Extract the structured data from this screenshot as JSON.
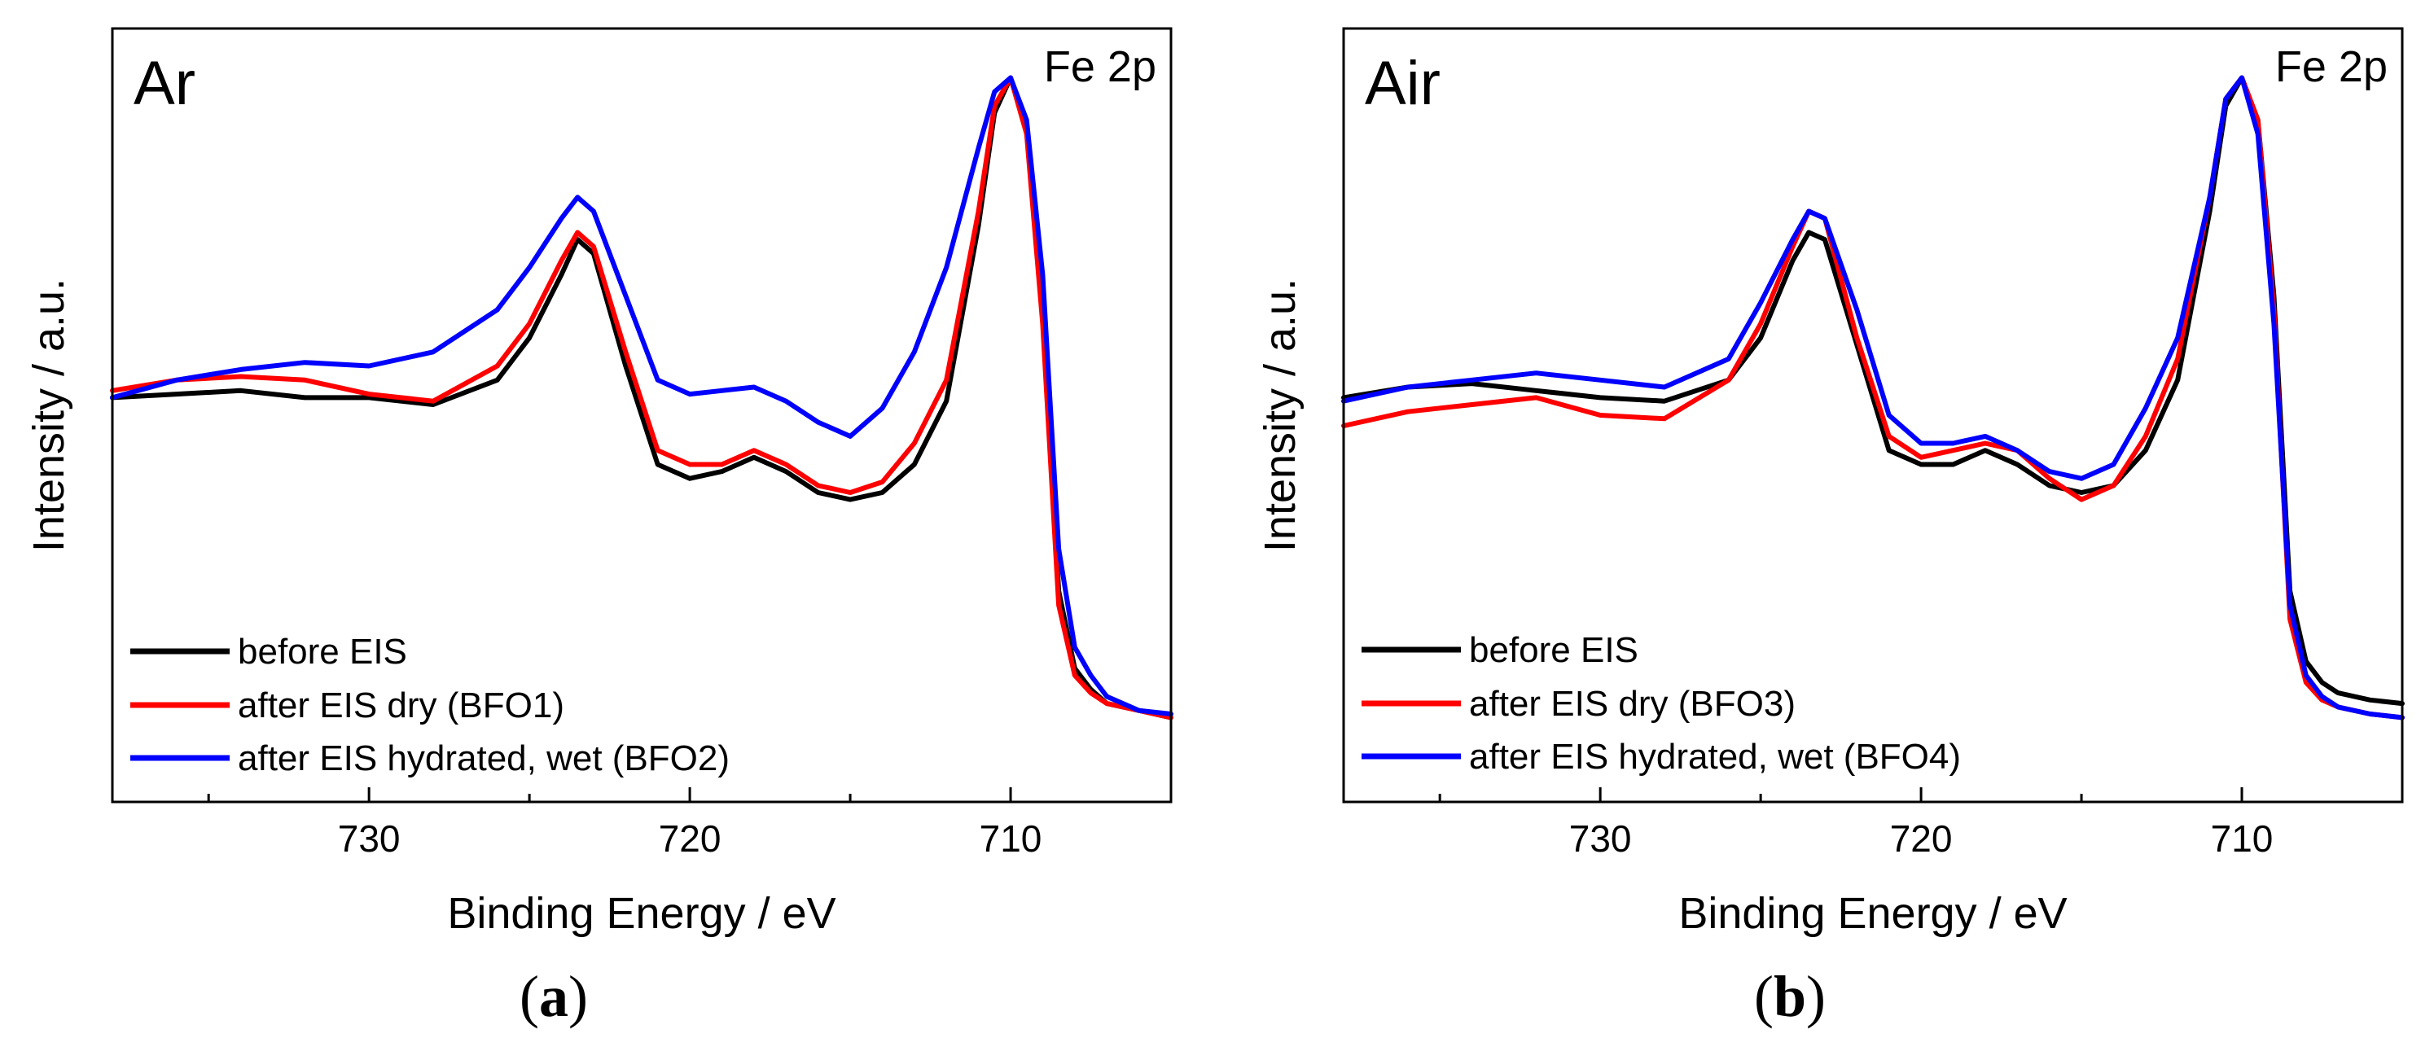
{
  "chart_data": [
    {
      "type": "line",
      "panel_label": "a",
      "atmosphere_label": "Ar",
      "corner_label": "Fe 2p",
      "xlabel": "Binding Energy / eV",
      "ylabel": "Intensity / a.u.",
      "xlim": [
        738,
        705
      ],
      "ylim": [
        0,
        1.1
      ],
      "x_ticks": [
        730,
        720,
        710
      ],
      "x_minor_ticks": [
        735,
        725,
        715,
        705
      ],
      "grid": false,
      "legend_position": "bottom-left",
      "series": [
        {
          "name": "before EIS",
          "color": "#000000",
          "x": [
            738,
            736,
            734,
            732,
            730,
            728,
            726,
            725,
            724,
            723.5,
            723,
            722,
            721,
            720,
            719,
            718,
            717,
            716,
            715,
            714,
            713,
            712,
            711,
            710.5,
            710,
            709.5,
            709,
            708.5,
            708,
            707.5,
            707,
            706,
            705
          ],
          "y": [
            0.575,
            0.58,
            0.585,
            0.575,
            0.575,
            0.565,
            0.6,
            0.66,
            0.75,
            0.8,
            0.78,
            0.62,
            0.48,
            0.46,
            0.47,
            0.49,
            0.47,
            0.44,
            0.43,
            0.44,
            0.48,
            0.57,
            0.82,
            0.98,
            1.03,
            0.96,
            0.7,
            0.3,
            0.19,
            0.16,
            0.14,
            0.13,
            0.12
          ]
        },
        {
          "name": "after EIS dry (BFO1)",
          "color": "#ff0000",
          "x": [
            738,
            736,
            734,
            732,
            730,
            728,
            726,
            725,
            724,
            723.5,
            723,
            722,
            721,
            720,
            719,
            718,
            717,
            716,
            715,
            714,
            713,
            712,
            711,
            710.5,
            710,
            709.5,
            709,
            708.5,
            708,
            707.5,
            707,
            706,
            705
          ],
          "y": [
            0.585,
            0.6,
            0.605,
            0.6,
            0.58,
            0.57,
            0.62,
            0.68,
            0.77,
            0.81,
            0.79,
            0.64,
            0.5,
            0.48,
            0.48,
            0.5,
            0.48,
            0.45,
            0.44,
            0.455,
            0.51,
            0.6,
            0.84,
            0.99,
            1.03,
            0.95,
            0.68,
            0.28,
            0.18,
            0.155,
            0.14,
            0.13,
            0.12
          ]
        },
        {
          "name": "after EIS hydrated, wet (BFO2)",
          "color": "#0000ff",
          "x": [
            738,
            736,
            734,
            732,
            730,
            728,
            726,
            725,
            724,
            723.5,
            723,
            722,
            721,
            720,
            719,
            718,
            717,
            716,
            715,
            714,
            713,
            712,
            711,
            710.5,
            710,
            709.5,
            709,
            708.5,
            708,
            707.5,
            707,
            706,
            705
          ],
          "y": [
            0.575,
            0.6,
            0.615,
            0.625,
            0.62,
            0.64,
            0.7,
            0.76,
            0.83,
            0.86,
            0.84,
            0.72,
            0.6,
            0.58,
            0.585,
            0.59,
            0.57,
            0.54,
            0.52,
            0.56,
            0.64,
            0.76,
            0.93,
            1.01,
            1.03,
            0.97,
            0.75,
            0.36,
            0.22,
            0.18,
            0.15,
            0.13,
            0.125
          ]
        }
      ]
    },
    {
      "type": "line",
      "panel_label": "b",
      "atmosphere_label": "Air",
      "corner_label": "Fe 2p",
      "xlabel": "Binding Energy / eV",
      "ylabel": "Intensity / a.u.",
      "xlim": [
        738,
        705
      ],
      "ylim": [
        0,
        1.1
      ],
      "x_ticks": [
        730,
        720,
        710
      ],
      "x_minor_ticks": [
        735,
        725,
        715,
        705
      ],
      "grid": false,
      "legend_position": "bottom-left",
      "series": [
        {
          "name": "before EIS",
          "color": "#000000",
          "x": [
            738,
            736,
            734,
            732,
            730,
            728,
            726,
            725,
            724,
            723.5,
            723,
            722,
            721,
            720,
            719,
            718,
            717,
            716,
            715,
            714,
            713,
            712,
            711,
            710.5,
            710,
            709.5,
            709,
            708.5,
            708,
            707.5,
            707,
            706,
            705
          ],
          "y": [
            0.575,
            0.59,
            0.595,
            0.585,
            0.575,
            0.57,
            0.6,
            0.66,
            0.77,
            0.81,
            0.8,
            0.65,
            0.5,
            0.48,
            0.48,
            0.5,
            0.48,
            0.45,
            0.44,
            0.45,
            0.5,
            0.6,
            0.84,
            0.99,
            1.03,
            0.97,
            0.72,
            0.3,
            0.2,
            0.17,
            0.155,
            0.145,
            0.14
          ]
        },
        {
          "name": "after EIS dry (BFO3)",
          "color": "#ff0000",
          "x": [
            738,
            736,
            734,
            732,
            730,
            728,
            726,
            725,
            724,
            723.5,
            723,
            722,
            721,
            720,
            719,
            718,
            717,
            716,
            715,
            714,
            713,
            712,
            711,
            710.5,
            710,
            709.5,
            709,
            708.5,
            708,
            707.5,
            707,
            706,
            705
          ],
          "y": [
            0.535,
            0.555,
            0.565,
            0.575,
            0.55,
            0.545,
            0.6,
            0.68,
            0.79,
            0.84,
            0.83,
            0.66,
            0.52,
            0.49,
            0.5,
            0.51,
            0.5,
            0.46,
            0.43,
            0.45,
            0.52,
            0.63,
            0.86,
            1.0,
            1.03,
            0.97,
            0.7,
            0.26,
            0.17,
            0.145,
            0.135,
            0.125,
            0.12
          ]
        },
        {
          "name": "after EIS hydrated, wet (BFO4)",
          "color": "#0000ff",
          "x": [
            738,
            736,
            734,
            732,
            730,
            728,
            726,
            725,
            724,
            723.5,
            723,
            722,
            721,
            720,
            719,
            718,
            717,
            716,
            715,
            714,
            713,
            712,
            711,
            710.5,
            710,
            709.5,
            709,
            708.5,
            708,
            707.5,
            707,
            706,
            705
          ],
          "y": [
            0.57,
            0.59,
            0.6,
            0.61,
            0.6,
            0.59,
            0.63,
            0.71,
            0.8,
            0.84,
            0.83,
            0.7,
            0.55,
            0.51,
            0.51,
            0.52,
            0.5,
            0.47,
            0.46,
            0.48,
            0.56,
            0.66,
            0.86,
            1.0,
            1.03,
            0.95,
            0.68,
            0.28,
            0.18,
            0.15,
            0.135,
            0.125,
            0.12
          ]
        }
      ]
    }
  ]
}
